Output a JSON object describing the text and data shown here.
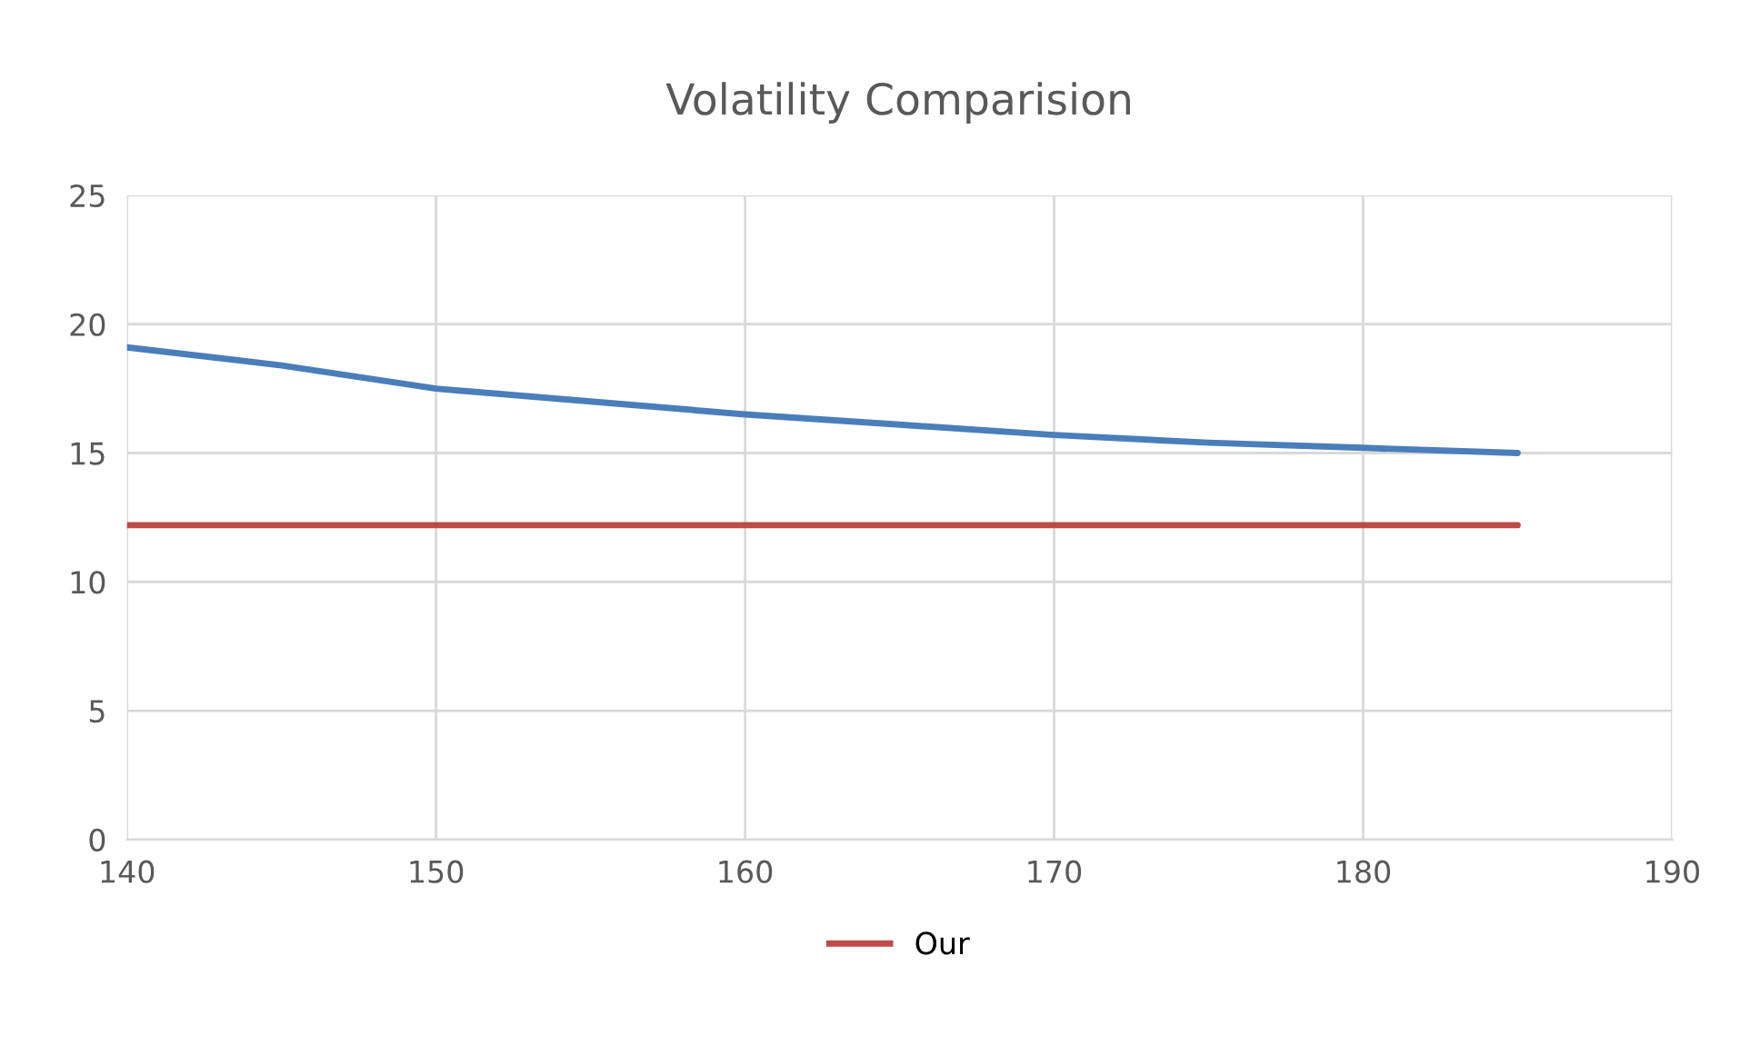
{
  "chart_data": {
    "type": "line",
    "title": "Volatility Comparision",
    "xlim": [
      140,
      190
    ],
    "xticks": [
      140,
      150,
      160,
      170,
      180,
      190
    ],
    "ylim": [
      0,
      25
    ],
    "yticks": [
      0,
      5,
      10,
      15,
      20,
      25
    ],
    "grid": true,
    "legend": "bottom",
    "marker": "none",
    "line_style": "solid",
    "series": [
      {
        "color": "#4a7ebb",
        "x": [
          140,
          145,
          150,
          155,
          160,
          165,
          170,
          175,
          180,
          185
        ],
        "values": [
          19.1,
          18.4,
          17.5,
          17.0,
          16.5,
          16.1,
          15.7,
          15.4,
          15.2,
          15.0
        ]
      },
      {
        "name": "Our",
        "color": "#be4b48",
        "x": [
          140,
          150,
          160,
          170,
          180,
          185
        ],
        "values": [
          12.2,
          12.2,
          12.2,
          12.2,
          12.2,
          12.2
        ]
      }
    ]
  }
}
